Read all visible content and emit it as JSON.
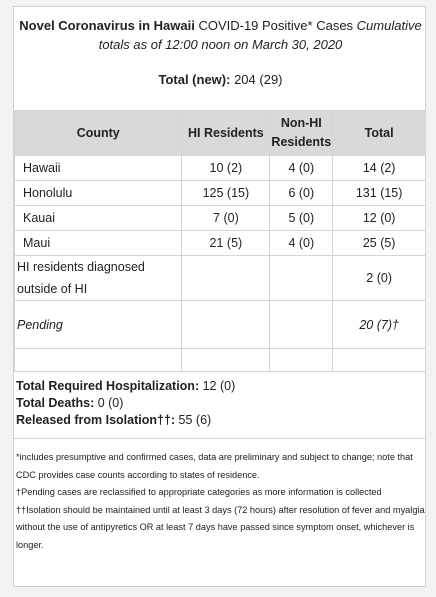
{
  "title": {
    "bold": "Novel Coronavirus in Hawaii",
    "normal": " COVID-19 Positive* Cases ",
    "italic": "Cumulative totals as of 12:00 noon on March 30, 2020"
  },
  "total": {
    "label": "Total (new):",
    "value": " 204 (29)"
  },
  "table": {
    "headers": [
      "County",
      "HI Residents",
      "Non-HI Residents",
      "Total"
    ],
    "rows": [
      {
        "county": "Hawaii",
        "hi": "10 (2)",
        "nonhi": "4 (0)",
        "total": "14 (2)"
      },
      {
        "county": "Honolulu",
        "hi": "125 (15)",
        "nonhi": "6 (0)",
        "total": "131 (15)"
      },
      {
        "county": "Kauai",
        "hi": "7 (0)",
        "nonhi": "5 (0)",
        "total": "12 (0)"
      },
      {
        "county": "Maui",
        "hi": "21 (5)",
        "nonhi": "4 (0)",
        "total": "25 (5)"
      }
    ],
    "outside": {
      "county": "HI residents diagnosed outside of HI",
      "total": "2 (0)"
    },
    "pending": {
      "county": "Pending",
      "total": "20 (7)†"
    }
  },
  "stats": {
    "hosp_label": "Total Required Hospitalization:",
    "hosp_value": " 12 (0)",
    "deaths_label": "Total Deaths:",
    "deaths_value": " 0 (0)",
    "released_label": "Released from Isolation††:",
    "released_value": " 55 (6)"
  },
  "notes": [
    "*includes presumptive and confirmed cases, data are preliminary and subject to change; note that CDC provides case counts according to states of residence.",
    "†Pending cases are reclassified to appropriate categories as more information is collected",
    "††Isolation should be maintained until at least 3 days (72 hours) after resolution of fever and myalgia without the use of antipyretics OR at least 7 days have passed since symptom onset, whichever is longer."
  ]
}
